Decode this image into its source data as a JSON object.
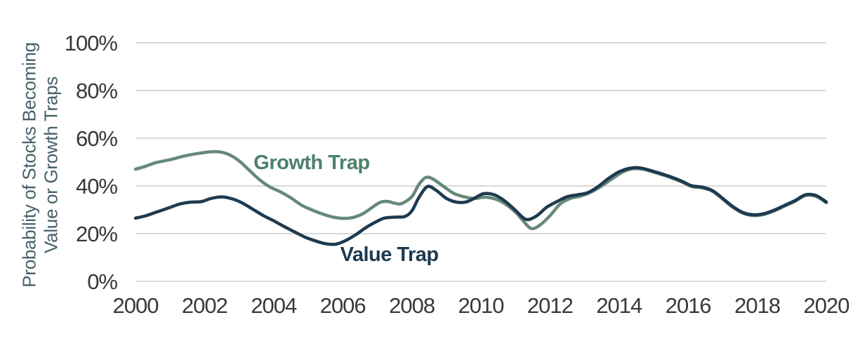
{
  "chart_data": {
    "type": "line",
    "title": "",
    "ylabel_lines": [
      "Probability of Stocks Becoming",
      "Value or Growth Traps"
    ],
    "xlabel": "",
    "xlim": [
      2000,
      2020
    ],
    "ylim": [
      0,
      100
    ],
    "x_ticks": [
      2000,
      2002,
      2004,
      2006,
      2008,
      2010,
      2012,
      2014,
      2016,
      2018,
      2020
    ],
    "y_ticks": [
      {
        "label": "100%",
        "value": 100
      },
      {
        "label": "80%",
        "value": 80
      },
      {
        "label": "60%",
        "value": 60
      },
      {
        "label": "40%",
        "value": 40
      },
      {
        "label": "20%",
        "value": 20
      },
      {
        "label": "0%",
        "value": 0
      }
    ],
    "grid": "horizontal-only",
    "legend_position": "inline-annotations",
    "colors": {
      "background": "#ffffff",
      "grid": "#d9d9d9",
      "tick_text": "#383838",
      "axis_title": "#466069",
      "growth_trap": "#66897A",
      "value_trap": "#1D3A50"
    },
    "series": [
      {
        "name": "Growth Trap",
        "color": "#66897A",
        "points": [
          [
            2000.0,
            47.0
          ],
          [
            2000.3,
            48.3
          ],
          [
            2000.6,
            49.8
          ],
          [
            2001.0,
            51.0
          ],
          [
            2001.4,
            52.5
          ],
          [
            2001.8,
            53.6
          ],
          [
            2002.1,
            54.2
          ],
          [
            2002.4,
            54.3
          ],
          [
            2002.7,
            53.2
          ],
          [
            2003.0,
            50.5
          ],
          [
            2003.3,
            46.5
          ],
          [
            2003.6,
            42.5
          ],
          [
            2003.9,
            39.5
          ],
          [
            2004.2,
            37.5
          ],
          [
            2004.5,
            35.0
          ],
          [
            2004.8,
            32.0
          ],
          [
            2005.1,
            30.0
          ],
          [
            2005.4,
            28.3
          ],
          [
            2005.7,
            27.0
          ],
          [
            2006.0,
            26.4
          ],
          [
            2006.3,
            26.8
          ],
          [
            2006.6,
            28.5
          ],
          [
            2006.9,
            31.5
          ],
          [
            2007.1,
            33.2
          ],
          [
            2007.3,
            33.5
          ],
          [
            2007.5,
            32.8
          ],
          [
            2007.7,
            32.6
          ],
          [
            2008.0,
            35.5
          ],
          [
            2008.2,
            40.5
          ],
          [
            2008.4,
            43.5
          ],
          [
            2008.6,
            43.0
          ],
          [
            2008.9,
            40.0
          ],
          [
            2009.2,
            37.0
          ],
          [
            2009.5,
            35.5
          ],
          [
            2009.8,
            34.7
          ],
          [
            2010.1,
            35.3
          ],
          [
            2010.4,
            34.6
          ],
          [
            2010.7,
            32.5
          ],
          [
            2011.0,
            29.0
          ],
          [
            2011.2,
            25.8
          ],
          [
            2011.45,
            22.2
          ],
          [
            2011.7,
            23.5
          ],
          [
            2012.0,
            27.5
          ],
          [
            2012.3,
            32.5
          ],
          [
            2012.6,
            34.8
          ],
          [
            2012.9,
            35.8
          ],
          [
            2013.2,
            37.5
          ],
          [
            2013.5,
            40.0
          ],
          [
            2013.8,
            43.0
          ],
          [
            2014.1,
            45.8
          ],
          [
            2014.4,
            47.2
          ],
          [
            2014.7,
            47.0
          ],
          [
            2015.0,
            45.8
          ],
          [
            2015.4,
            44.0
          ],
          [
            2015.8,
            41.8
          ],
          [
            2016.1,
            39.8
          ],
          [
            2016.4,
            39.2
          ],
          [
            2016.7,
            37.8
          ],
          [
            2017.0,
            34.5
          ],
          [
            2017.3,
            31.0
          ],
          [
            2017.6,
            28.5
          ],
          [
            2017.9,
            27.6
          ],
          [
            2018.2,
            28.1
          ],
          [
            2018.5,
            29.6
          ],
          [
            2018.8,
            31.6
          ],
          [
            2019.1,
            33.6
          ],
          [
            2019.4,
            36.0
          ],
          [
            2019.7,
            35.7
          ],
          [
            2020.0,
            33.0
          ]
        ]
      },
      {
        "name": "Value Trap",
        "color": "#1D3A50",
        "points": [
          [
            2000.0,
            26.5
          ],
          [
            2000.3,
            27.5
          ],
          [
            2000.6,
            29.0
          ],
          [
            2001.0,
            31.0
          ],
          [
            2001.3,
            32.5
          ],
          [
            2001.6,
            33.2
          ],
          [
            2001.9,
            33.4
          ],
          [
            2002.2,
            34.8
          ],
          [
            2002.5,
            35.4
          ],
          [
            2002.8,
            34.6
          ],
          [
            2003.1,
            32.8
          ],
          [
            2003.4,
            30.2
          ],
          [
            2003.7,
            27.6
          ],
          [
            2004.0,
            25.4
          ],
          [
            2004.3,
            23.0
          ],
          [
            2004.6,
            20.8
          ],
          [
            2004.9,
            18.6
          ],
          [
            2005.2,
            17.0
          ],
          [
            2005.5,
            15.8
          ],
          [
            2005.8,
            15.6
          ],
          [
            2006.1,
            17.2
          ],
          [
            2006.4,
            19.8
          ],
          [
            2006.7,
            22.8
          ],
          [
            2007.0,
            25.2
          ],
          [
            2007.2,
            26.5
          ],
          [
            2007.5,
            26.9
          ],
          [
            2007.8,
            27.2
          ],
          [
            2008.0,
            29.5
          ],
          [
            2008.2,
            35.0
          ],
          [
            2008.45,
            39.7
          ],
          [
            2008.7,
            38.2
          ],
          [
            2009.0,
            34.8
          ],
          [
            2009.3,
            33.2
          ],
          [
            2009.6,
            33.4
          ],
          [
            2009.9,
            35.6
          ],
          [
            2010.1,
            36.8
          ],
          [
            2010.4,
            36.2
          ],
          [
            2010.7,
            33.6
          ],
          [
            2011.0,
            29.8
          ],
          [
            2011.3,
            26.0
          ],
          [
            2011.6,
            27.3
          ],
          [
            2011.9,
            31.0
          ],
          [
            2012.2,
            33.4
          ],
          [
            2012.5,
            35.5
          ],
          [
            2012.8,
            36.3
          ],
          [
            2013.1,
            37.2
          ],
          [
            2013.4,
            39.8
          ],
          [
            2013.7,
            43.2
          ],
          [
            2014.0,
            45.9
          ],
          [
            2014.3,
            47.4
          ],
          [
            2014.6,
            47.6
          ],
          [
            2015.0,
            46.1
          ],
          [
            2015.4,
            44.3
          ],
          [
            2015.8,
            42.1
          ],
          [
            2016.1,
            40.1
          ],
          [
            2016.4,
            39.5
          ],
          [
            2016.7,
            38.1
          ],
          [
            2017.0,
            34.8
          ],
          [
            2017.3,
            31.3
          ],
          [
            2017.6,
            28.8
          ],
          [
            2017.9,
            27.9
          ],
          [
            2018.2,
            28.4
          ],
          [
            2018.5,
            29.9
          ],
          [
            2018.8,
            31.9
          ],
          [
            2019.1,
            33.9
          ],
          [
            2019.4,
            36.3
          ],
          [
            2019.7,
            36.0
          ],
          [
            2020.0,
            33.3
          ]
        ]
      }
    ],
    "annotations": [
      {
        "text": "Growth Trap",
        "x": 2005.1,
        "y": 50.0,
        "color": "#4A8069"
      },
      {
        "text": "Value Trap",
        "x": 2007.35,
        "y": 11.5,
        "color": "#1D3A50"
      }
    ]
  }
}
